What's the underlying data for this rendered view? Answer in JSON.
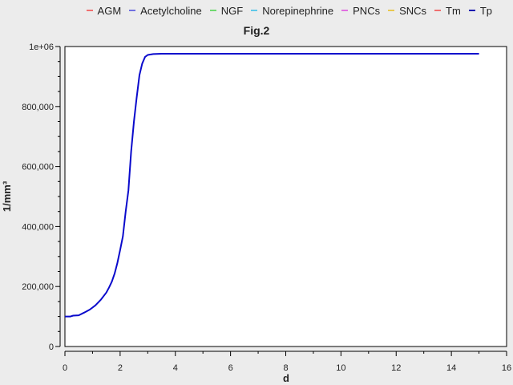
{
  "chart_data": {
    "type": "line",
    "title": "Fig.2",
    "xlabel": "d",
    "ylabel": "1/mm³",
    "xlim": [
      0,
      16
    ],
    "ylim": [
      0,
      1000000
    ],
    "x_ticks": [
      0,
      2,
      4,
      6,
      8,
      10,
      12,
      14,
      16
    ],
    "x_tick_labels": [
      "0",
      "2",
      "4",
      "6",
      "8",
      "10",
      "12",
      "14",
      "16"
    ],
    "y_ticks": [
      0,
      200000,
      400000,
      600000,
      800000,
      1000000
    ],
    "y_tick_labels": [
      "0",
      "200,000",
      "400,000",
      "600,000",
      "800,000",
      "1e+06"
    ],
    "grid": false,
    "legend_position": "top-right",
    "legend": [
      {
        "name": "AGM",
        "color": "#f07070"
      },
      {
        "name": "Acetylcholine",
        "color": "#7070e0"
      },
      {
        "name": "NGF",
        "color": "#70d870"
      },
      {
        "name": "Norepinephrine",
        "color": "#60c8e8"
      },
      {
        "name": "PNCs",
        "color": "#e070e0"
      },
      {
        "name": "SNCs",
        "color": "#e8c850"
      },
      {
        "name": "Tm",
        "color": "#f07070"
      },
      {
        "name": "Tp",
        "color": "#1010b0"
      }
    ],
    "series": [
      {
        "name": "Tp",
        "color": "#0a0acc",
        "x": [
          0,
          0.2,
          0.3,
          0.5,
          0.7,
          0.9,
          1.1,
          1.3,
          1.5,
          1.6,
          1.7,
          1.8,
          1.9,
          2.0,
          2.1,
          2.2,
          2.3,
          2.4,
          2.5,
          2.6,
          2.7,
          2.8,
          2.9,
          3.0,
          3.2,
          3.5,
          4,
          5,
          6,
          8,
          10,
          12,
          14,
          15
        ],
        "y": [
          100000,
          100000,
          103000,
          104000,
          113000,
          123000,
          137000,
          156000,
          180000,
          197000,
          216000,
          243000,
          278000,
          322000,
          367000,
          450000,
          520000,
          650000,
          750000,
          830000,
          905000,
          943000,
          965000,
          972000,
          975000,
          976000,
          976000,
          976000,
          976000,
          976000,
          976000,
          976000,
          976000,
          976000
        ]
      }
    ]
  }
}
